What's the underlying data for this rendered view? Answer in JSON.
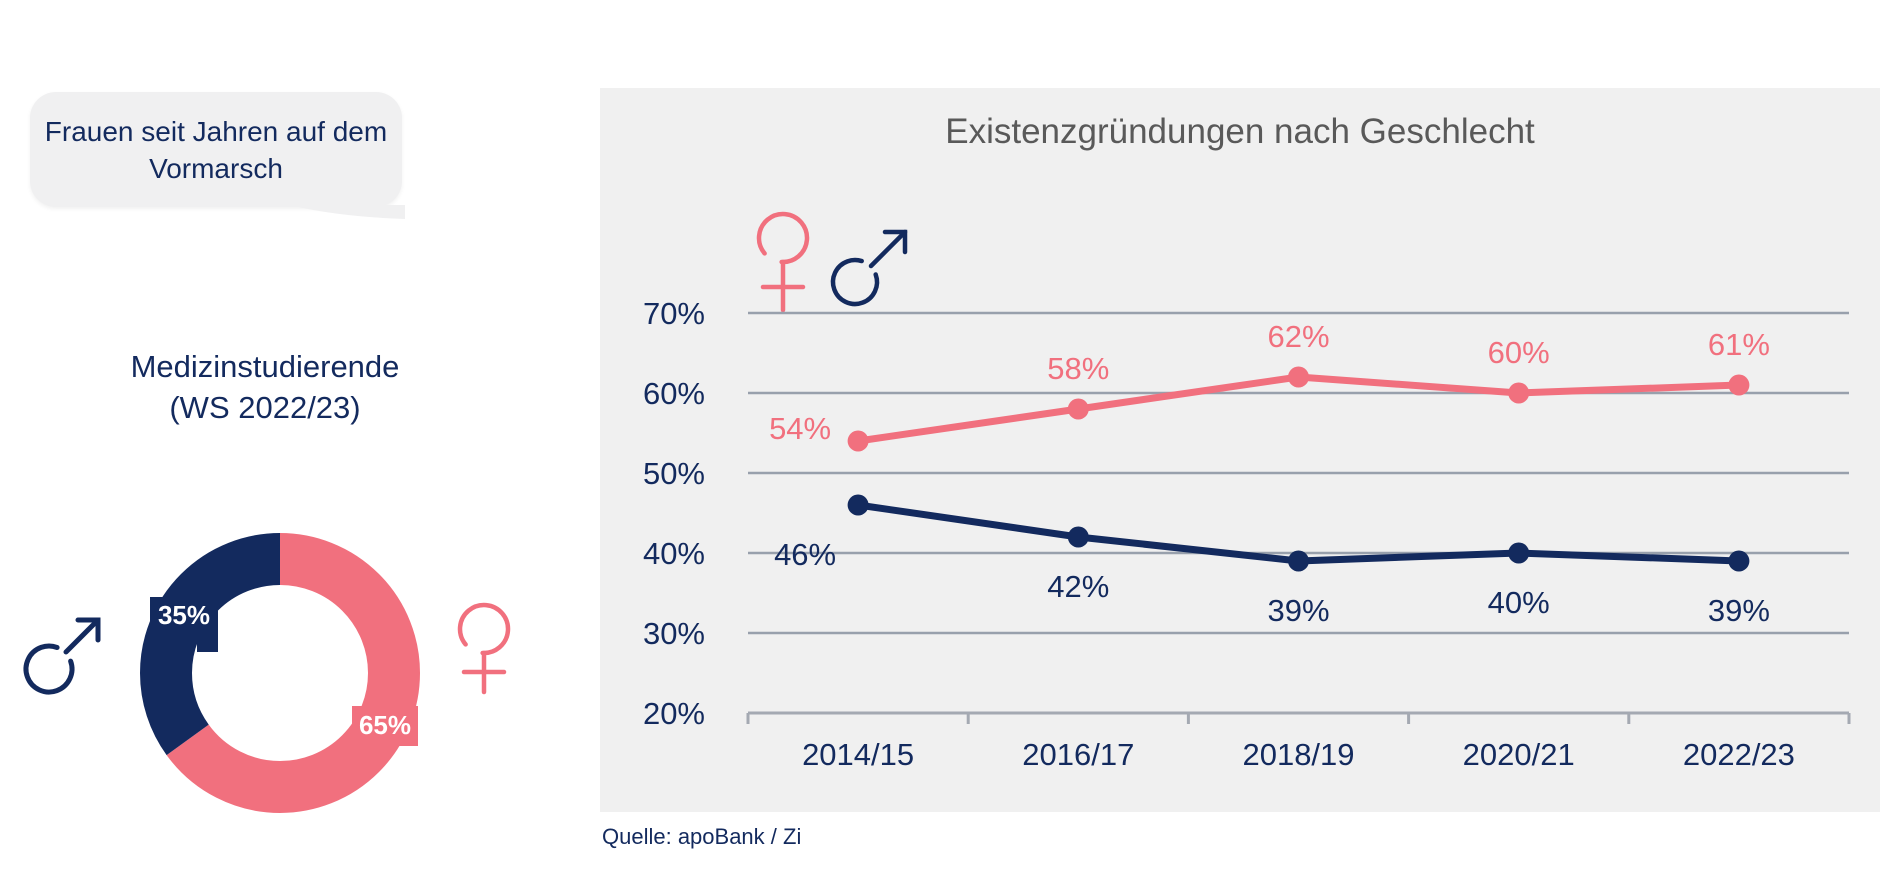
{
  "bubble": {
    "text": "Frauen seit Jahren auf dem Vormarsch"
  },
  "donut": {
    "title_line1": "Medizinstudierende",
    "title_line2": "(WS 2022/23)"
  },
  "source_label": "Quelle: apoBank / Zi",
  "colors": {
    "navy": "#132a5e",
    "coral": "#f1707e",
    "panel_bg": "#f0f0f0",
    "bubble_bg": "#f0f0f1",
    "title_gray": "#595959",
    "gridline": "#98a0ac",
    "axis": "#a4a9b2"
  },
  "chart_data": [
    {
      "type": "pie",
      "donut": true,
      "title": "Medizinstudierende (WS 2022/23)",
      "categories": [
        "Männer",
        "Frauen"
      ],
      "values": [
        35,
        65
      ],
      "labels": [
        "35%",
        "65%"
      ],
      "colors": [
        "#132a5e",
        "#f1707e"
      ],
      "legend_icons": [
        "male-symbol",
        "female-symbol"
      ]
    },
    {
      "type": "line",
      "title": "Existenzgründungen nach Geschlecht",
      "categories": [
        "2014/15",
        "2016/17",
        "2018/19",
        "2020/21",
        "2022/23"
      ],
      "series": [
        {
          "name": "Frauen",
          "symbol": "female-symbol",
          "color": "#f1707e",
          "values": [
            54,
            58,
            62,
            60,
            61
          ],
          "data_labels": [
            "54%",
            "58%",
            "62%",
            "60%",
            "61%"
          ]
        },
        {
          "name": "Männer",
          "symbol": "male-symbol",
          "color": "#132a5e",
          "values": [
            46,
            42,
            39,
            40,
            39
          ],
          "data_labels": [
            "46%",
            "42%",
            "39%",
            "40%",
            "39%"
          ]
        }
      ],
      "y_ticks": [
        70,
        60,
        50,
        40,
        30,
        20
      ],
      "y_tick_labels": [
        "70%",
        "60%",
        "50%",
        "40%",
        "30%",
        "20%"
      ],
      "ylim": [
        20,
        70
      ],
      "grid": true,
      "legend_position": "top-left",
      "source": "Quelle: apoBank / Zi"
    }
  ]
}
